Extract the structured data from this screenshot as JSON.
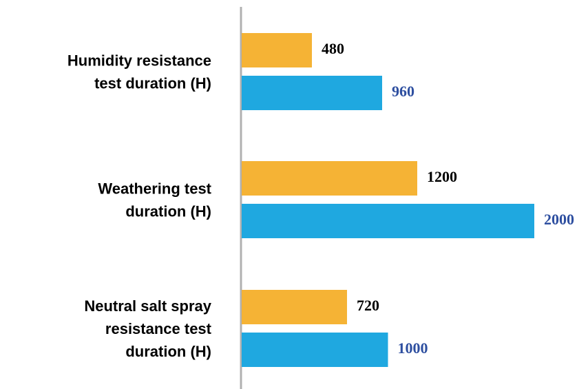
{
  "chart_data": {
    "type": "bar",
    "orientation": "horizontal",
    "categories": [
      [
        "Humidity resistance",
        "test duration (H)"
      ],
      [
        "Weathering test",
        "duration (H)"
      ],
      [
        "Neutral salt spray",
        "resistance test",
        "duration (H)"
      ]
    ],
    "series": [
      {
        "color": "#F5B335",
        "label_color": "#000000",
        "values": [
          480,
          1200,
          720
        ]
      },
      {
        "color": "#1FA8E0",
        "label_color": "#2E4FA0",
        "values": [
          960,
          2000,
          1000
        ]
      }
    ],
    "xlim": [
      0,
      2000
    ]
  }
}
